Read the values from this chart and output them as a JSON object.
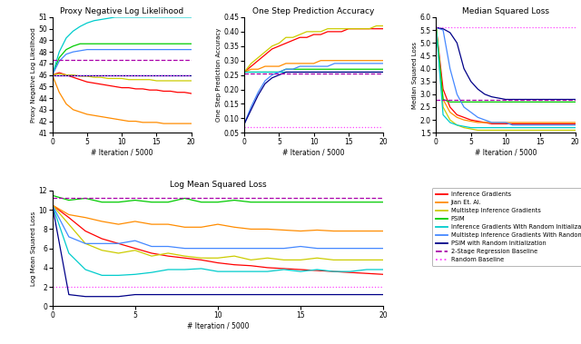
{
  "title_pnll": "Proxy Negative Log Likelihood",
  "title_ospa": "One Step Prediction Accuracy",
  "title_msl": "Median Squared Loss",
  "title_lmsl": "Log Mean Squared Loss",
  "xlabel": "# Iteration / 5000",
  "ylabel_pnll": "Proxy Negative Log Likelihood",
  "ylabel_ospa": "One Step Prediction Accuracy",
  "ylabel_msl": "Median Squared Loss",
  "ylabel_lmsl": "Log Mean Squared Loss",
  "colors": {
    "inference_gradients": "#FF0000",
    "jian_et_al": "#FF8C00",
    "multistep_inference": "#CCCC00",
    "psim": "#00CC00",
    "inference_gradients_rand": "#00CCCC",
    "multistep_inference_rand": "#4488FF",
    "psim_rand": "#000088",
    "two_stage": "#AA00AA",
    "random_baseline": "#FF44FF"
  },
  "legend_labels": [
    "Inference Gradients",
    "Jian Et. Al.",
    "Multistep Inference Gradients",
    "PSIM",
    "Inference Gradients With Random Initialization",
    "Multistep Inference Gradients With Random Initialization",
    "PSIM with Random Initialization",
    "2-Stage Regression Baseline",
    "Random Baseline"
  ],
  "x": [
    0,
    1,
    2,
    3,
    4,
    5,
    6,
    7,
    8,
    9,
    10,
    11,
    12,
    13,
    14,
    15,
    16,
    17,
    18,
    19,
    20
  ],
  "pnll": {
    "inference_gradients": [
      46.0,
      46.2,
      46.0,
      45.8,
      45.6,
      45.4,
      45.3,
      45.2,
      45.1,
      45.0,
      44.9,
      44.9,
      44.8,
      44.8,
      44.7,
      44.7,
      44.6,
      44.6,
      44.5,
      44.5,
      44.4
    ],
    "jian_et_al": [
      46.0,
      44.5,
      43.5,
      43.0,
      42.8,
      42.6,
      42.5,
      42.4,
      42.3,
      42.2,
      42.1,
      42.0,
      42.0,
      41.9,
      41.9,
      41.9,
      41.8,
      41.8,
      41.8,
      41.8,
      41.8
    ],
    "multistep_inference": [
      46.0,
      46.1,
      46.0,
      46.0,
      45.9,
      45.9,
      45.8,
      45.8,
      45.7,
      45.7,
      45.7,
      45.6,
      45.6,
      45.6,
      45.6,
      45.5,
      45.5,
      45.5,
      45.5,
      45.5,
      45.5
    ],
    "psim": [
      46.0,
      47.5,
      48.2,
      48.5,
      48.7,
      48.7,
      48.7,
      48.7,
      48.7,
      48.7,
      48.7,
      48.7,
      48.7,
      48.7,
      48.7,
      48.7,
      48.7,
      48.7,
      48.7,
      48.7,
      48.7
    ],
    "inference_gradients_rand": [
      46.0,
      48.0,
      49.2,
      49.8,
      50.2,
      50.5,
      50.7,
      50.8,
      50.9,
      51.0,
      51.0,
      51.0,
      51.0,
      51.0,
      51.0,
      51.0,
      51.0,
      51.0,
      51.0,
      51.0,
      51.0
    ],
    "multistep_inference_rand": [
      46.0,
      47.2,
      47.8,
      48.0,
      48.1,
      48.2,
      48.2,
      48.2,
      48.2,
      48.2,
      48.2,
      48.2,
      48.2,
      48.2,
      48.2,
      48.2,
      48.2,
      48.2,
      48.2,
      48.2,
      48.2
    ],
    "psim_rand": [
      46.0,
      46.0,
      46.0,
      46.0,
      46.0,
      46.0,
      46.0,
      46.0,
      46.0,
      46.0,
      46.0,
      46.0,
      46.0,
      46.0,
      46.0,
      46.0,
      46.0,
      46.0,
      46.0,
      46.0,
      46.0
    ],
    "two_stage": [
      47.3,
      47.3,
      47.3,
      47.3,
      47.3,
      47.3,
      47.3,
      47.3,
      47.3,
      47.3,
      47.3,
      47.3,
      47.3,
      47.3,
      47.3,
      47.3,
      47.3,
      47.3,
      47.3,
      47.3,
      47.3
    ],
    "random_baseline": [
      46.0,
      46.0,
      46.0,
      46.0,
      46.0,
      46.0,
      46.0,
      46.0,
      46.0,
      46.0,
      46.0,
      46.0,
      46.0,
      46.0,
      46.0,
      46.0,
      46.0,
      46.0,
      46.0,
      46.0,
      46.0
    ]
  },
  "ospa": {
    "inference_gradients": [
      0.26,
      0.28,
      0.3,
      0.32,
      0.34,
      0.35,
      0.36,
      0.37,
      0.38,
      0.38,
      0.39,
      0.39,
      0.4,
      0.4,
      0.4,
      0.41,
      0.41,
      0.41,
      0.41,
      0.41,
      0.41
    ],
    "jian_et_al": [
      0.26,
      0.27,
      0.27,
      0.28,
      0.28,
      0.28,
      0.29,
      0.29,
      0.29,
      0.29,
      0.29,
      0.3,
      0.3,
      0.3,
      0.3,
      0.3,
      0.3,
      0.3,
      0.3,
      0.3,
      0.3
    ],
    "multistep_inference": [
      0.26,
      0.29,
      0.31,
      0.33,
      0.35,
      0.36,
      0.38,
      0.38,
      0.39,
      0.4,
      0.4,
      0.4,
      0.41,
      0.41,
      0.41,
      0.41,
      0.41,
      0.41,
      0.41,
      0.42,
      0.42
    ],
    "psim": [
      0.26,
      0.26,
      0.26,
      0.26,
      0.26,
      0.26,
      0.27,
      0.27,
      0.27,
      0.27,
      0.27,
      0.27,
      0.27,
      0.27,
      0.27,
      0.27,
      0.27,
      0.27,
      0.27,
      0.27,
      0.27
    ],
    "inference_gradients_rand": [
      0.26,
      0.26,
      0.26,
      0.26,
      0.26,
      0.26,
      0.26,
      0.26,
      0.26,
      0.26,
      0.26,
      0.26,
      0.26,
      0.26,
      0.26,
      0.26,
      0.26,
      0.26,
      0.26,
      0.26,
      0.26
    ],
    "multistep_inference_rand": [
      0.08,
      0.14,
      0.19,
      0.23,
      0.25,
      0.26,
      0.27,
      0.27,
      0.28,
      0.28,
      0.28,
      0.28,
      0.28,
      0.29,
      0.29,
      0.29,
      0.29,
      0.29,
      0.29,
      0.29,
      0.29
    ],
    "psim_rand": [
      0.08,
      0.13,
      0.18,
      0.22,
      0.24,
      0.25,
      0.26,
      0.26,
      0.26,
      0.26,
      0.26,
      0.26,
      0.26,
      0.26,
      0.26,
      0.26,
      0.26,
      0.26,
      0.26,
      0.26,
      0.26
    ],
    "two_stage": [
      0.255,
      0.255,
      0.255,
      0.255,
      0.255,
      0.255,
      0.255,
      0.255,
      0.255,
      0.255,
      0.255,
      0.255,
      0.255,
      0.255,
      0.255,
      0.255,
      0.255,
      0.255,
      0.255,
      0.255,
      0.255
    ],
    "random_baseline": [
      0.07,
      0.07,
      0.07,
      0.07,
      0.07,
      0.07,
      0.07,
      0.07,
      0.07,
      0.07,
      0.07,
      0.07,
      0.07,
      0.07,
      0.07,
      0.07,
      0.07,
      0.07,
      0.07,
      0.07,
      0.07
    ]
  },
  "msl": {
    "inference_gradients": [
      5.6,
      3.2,
      2.5,
      2.2,
      2.1,
      2.0,
      1.95,
      1.9,
      1.85,
      1.85,
      1.85,
      1.85,
      1.85,
      1.85,
      1.85,
      1.85,
      1.85,
      1.85,
      1.85,
      1.85,
      1.85
    ],
    "jian_et_al": [
      5.6,
      2.8,
      2.3,
      2.1,
      2.0,
      1.95,
      1.9,
      1.9,
      1.9,
      1.9,
      1.9,
      1.9,
      1.9,
      1.9,
      1.9,
      1.9,
      1.9,
      1.9,
      1.9,
      1.9,
      1.9
    ],
    "multistep_inference": [
      5.6,
      2.5,
      2.0,
      1.8,
      1.7,
      1.65,
      1.6,
      1.6,
      1.6,
      1.6,
      1.6,
      1.6,
      1.6,
      1.6,
      1.6,
      1.6,
      1.6,
      1.6,
      1.6,
      1.6,
      1.6
    ],
    "psim": [
      5.6,
      2.8,
      2.7,
      2.7,
      2.7,
      2.7,
      2.7,
      2.7,
      2.7,
      2.7,
      2.7,
      2.7,
      2.7,
      2.7,
      2.7,
      2.7,
      2.7,
      2.7,
      2.7,
      2.7,
      2.7
    ],
    "inference_gradients_rand": [
      5.6,
      2.2,
      1.9,
      1.8,
      1.75,
      1.7,
      1.7,
      1.7,
      1.7,
      1.7,
      1.7,
      1.7,
      1.7,
      1.7,
      1.7,
      1.7,
      1.7,
      1.7,
      1.7,
      1.7,
      1.7
    ],
    "multistep_inference_rand": [
      5.6,
      5.5,
      4.0,
      3.0,
      2.5,
      2.3,
      2.1,
      2.0,
      1.9,
      1.9,
      1.9,
      1.8,
      1.8,
      1.8,
      1.8,
      1.8,
      1.8,
      1.8,
      1.8,
      1.8,
      1.8
    ],
    "psim_rand": [
      5.6,
      5.55,
      5.4,
      5.0,
      4.0,
      3.5,
      3.2,
      3.0,
      2.9,
      2.85,
      2.8,
      2.8,
      2.8,
      2.8,
      2.8,
      2.8,
      2.8,
      2.8,
      2.8,
      2.8,
      2.8
    ],
    "two_stage": [
      2.8,
      2.8,
      2.8,
      2.8,
      2.8,
      2.8,
      2.8,
      2.8,
      2.8,
      2.8,
      2.8,
      2.8,
      2.8,
      2.8,
      2.8,
      2.8,
      2.8,
      2.8,
      2.8,
      2.8,
      2.8
    ],
    "random_baseline": [
      5.6,
      5.6,
      5.6,
      5.6,
      5.6,
      5.6,
      5.6,
      5.6,
      5.6,
      5.6,
      5.6,
      5.6,
      5.6,
      5.6,
      5.6,
      5.6,
      5.6,
      5.6,
      5.6,
      5.6,
      5.6
    ]
  },
  "lmsl": {
    "inference_gradients": [
      10.5,
      9.2,
      7.8,
      7.0,
      6.5,
      6.0,
      5.5,
      5.2,
      5.0,
      4.8,
      4.5,
      4.3,
      4.2,
      4.0,
      3.9,
      3.8,
      3.7,
      3.6,
      3.5,
      3.4,
      3.3
    ],
    "jian_et_al": [
      10.5,
      9.5,
      9.2,
      8.8,
      8.5,
      8.8,
      8.5,
      8.5,
      8.2,
      8.2,
      8.5,
      8.2,
      8.0,
      8.0,
      7.9,
      7.8,
      7.9,
      7.8,
      7.8,
      7.8,
      7.8
    ],
    "multistep_inference": [
      10.5,
      8.5,
      6.5,
      5.8,
      5.5,
      5.8,
      5.2,
      5.5,
      5.2,
      5.0,
      5.0,
      5.2,
      4.8,
      5.0,
      4.8,
      4.8,
      5.0,
      4.8,
      4.8,
      4.8,
      4.8
    ],
    "psim": [
      11.5,
      11.0,
      11.2,
      10.8,
      10.8,
      11.0,
      10.8,
      10.8,
      11.2,
      10.8,
      10.8,
      11.0,
      10.8,
      10.8,
      10.8,
      10.8,
      10.8,
      10.8,
      10.8,
      10.8,
      10.8
    ],
    "inference_gradients_rand": [
      10.5,
      5.5,
      3.8,
      3.2,
      3.2,
      3.3,
      3.5,
      3.8,
      3.8,
      3.9,
      3.6,
      3.6,
      3.6,
      3.6,
      3.8,
      3.6,
      3.8,
      3.6,
      3.6,
      3.8,
      3.8
    ],
    "multistep_inference_rand": [
      10.5,
      7.2,
      6.5,
      6.5,
      6.5,
      6.8,
      6.2,
      6.2,
      6.0,
      6.0,
      6.0,
      6.0,
      6.0,
      6.0,
      6.0,
      6.2,
      6.0,
      6.0,
      6.0,
      6.0,
      6.0
    ],
    "psim_rand": [
      10.5,
      1.2,
      1.0,
      1.0,
      1.0,
      1.2,
      1.2,
      1.2,
      1.2,
      1.2,
      1.2,
      1.2,
      1.2,
      1.2,
      1.2,
      1.2,
      1.2,
      1.2,
      1.2,
      1.2,
      1.2
    ],
    "two_stage": [
      11.2,
      11.2,
      11.2,
      11.2,
      11.2,
      11.2,
      11.2,
      11.2,
      11.2,
      11.2,
      11.2,
      11.2,
      11.2,
      11.2,
      11.2,
      11.2,
      11.2,
      11.2,
      11.2,
      11.2,
      11.2
    ],
    "random_baseline": [
      2.0,
      2.0,
      2.0,
      2.0,
      2.0,
      2.0,
      2.0,
      2.0,
      2.0,
      2.0,
      2.0,
      2.0,
      2.0,
      2.0,
      2.0,
      2.0,
      2.0,
      2.0,
      2.0,
      2.0,
      2.0
    ]
  },
  "figsize": [
    6.4,
    3.79
  ],
  "dpi": 100
}
